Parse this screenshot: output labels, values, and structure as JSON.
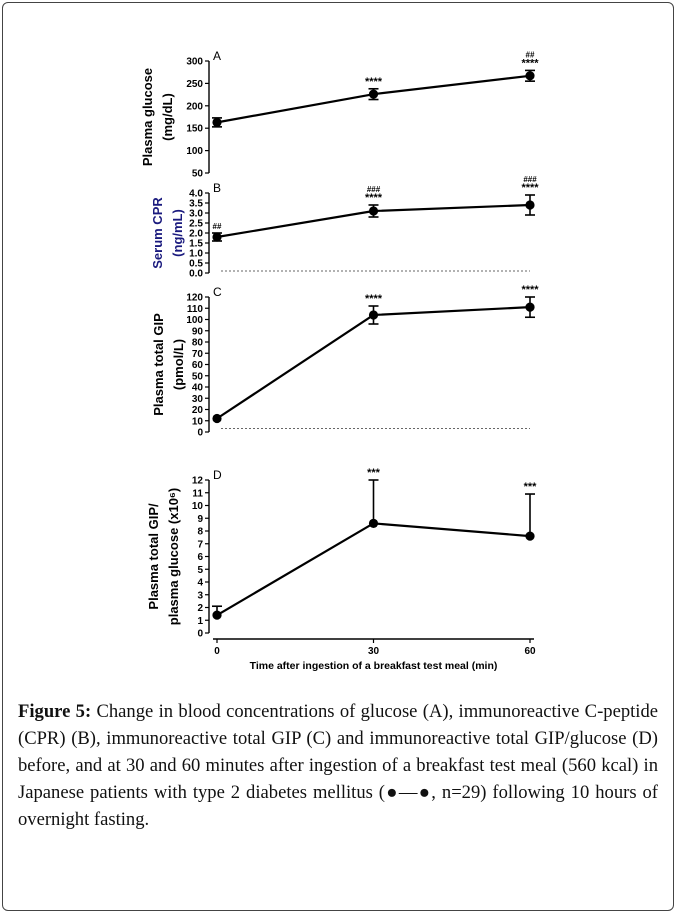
{
  "figure": {
    "caption_label": "Figure 5:",
    "caption_text": " Change in blood concentrations of glucose (A), immunoreactive C-peptide (CPR) (B), immunoreactive total GIP (C) and immunoreactive total GIP/glucose (D) before, and at 30 and 60 minutes after ingestion of a breakfast test meal (560 kcal) in Japanese patients with type 2 diabetes mellitus (●—●, n=29) following 10 hours of overnight fasting."
  },
  "colors": {
    "line": "#000000",
    "ylabel_B": "#1a1a7e"
  },
  "chart_data": [
    {
      "panel": "A",
      "type": "line",
      "ylabel": [
        "Plasma glucose",
        "(mg/dL)"
      ],
      "ylim": [
        50,
        300
      ],
      "yticks": [
        50,
        100,
        150,
        200,
        250,
        300
      ],
      "x": [
        0,
        30,
        60
      ],
      "y": [
        163,
        226,
        267
      ],
      "err_up": [
        10,
        12,
        12
      ],
      "err_down": [
        10,
        12,
        12
      ],
      "annotations": [
        [
          "",
          ""
        ],
        [
          "",
          "****"
        ],
        [
          "##",
          "****"
        ]
      ]
    },
    {
      "panel": "B",
      "type": "line",
      "ylabel": [
        "Serum CPR",
        "(ng/mL)"
      ],
      "ylim": [
        0,
        4.0
      ],
      "yticks": [
        0.0,
        0.5,
        1.0,
        1.5,
        2.0,
        2.5,
        3.0,
        3.5,
        4.0
      ],
      "x": [
        0,
        30,
        60
      ],
      "y": [
        1.8,
        3.1,
        3.4
      ],
      "err_up": [
        0.2,
        0.3,
        0.5
      ],
      "err_down": [
        0.2,
        0.3,
        0.5
      ],
      "baseline": 0.1,
      "annotations": [
        [
          "##",
          ""
        ],
        [
          "###",
          "****"
        ],
        [
          "###",
          "****"
        ]
      ]
    },
    {
      "panel": "C",
      "type": "line",
      "ylabel": [
        "Plasma total GIP",
        "(pmol/L)"
      ],
      "ylim": [
        0,
        120
      ],
      "yticks": [
        0,
        10,
        20,
        30,
        40,
        50,
        60,
        70,
        80,
        90,
        100,
        110,
        120
      ],
      "x": [
        0,
        30,
        60
      ],
      "y": [
        12,
        104,
        111
      ],
      "err_up": [
        0,
        8,
        9
      ],
      "err_down": [
        0,
        8,
        9
      ],
      "baseline": 3,
      "annotations": [
        [
          "",
          ""
        ],
        [
          "",
          "****"
        ],
        [
          "",
          "****"
        ]
      ]
    },
    {
      "panel": "D",
      "type": "line",
      "ylabel": [
        "Plasma total GIP/",
        "plasma glucose (x10⁶)"
      ],
      "ylim": [
        0,
        12
      ],
      "yticks": [
        0,
        1,
        2,
        3,
        4,
        5,
        6,
        7,
        8,
        9,
        10,
        11,
        12
      ],
      "x": [
        0,
        30,
        60
      ],
      "y": [
        1.4,
        8.6,
        7.6
      ],
      "err_up": [
        0.7,
        3.4,
        3.3
      ],
      "err_down": [
        0,
        0,
        0
      ],
      "xticks": [
        0,
        30,
        60
      ],
      "xlabel": "Time after ingestion of a breakfast test meal (min)",
      "annotations": [
        [
          "",
          ""
        ],
        [
          "",
          "***"
        ],
        [
          "",
          "***"
        ]
      ]
    }
  ]
}
